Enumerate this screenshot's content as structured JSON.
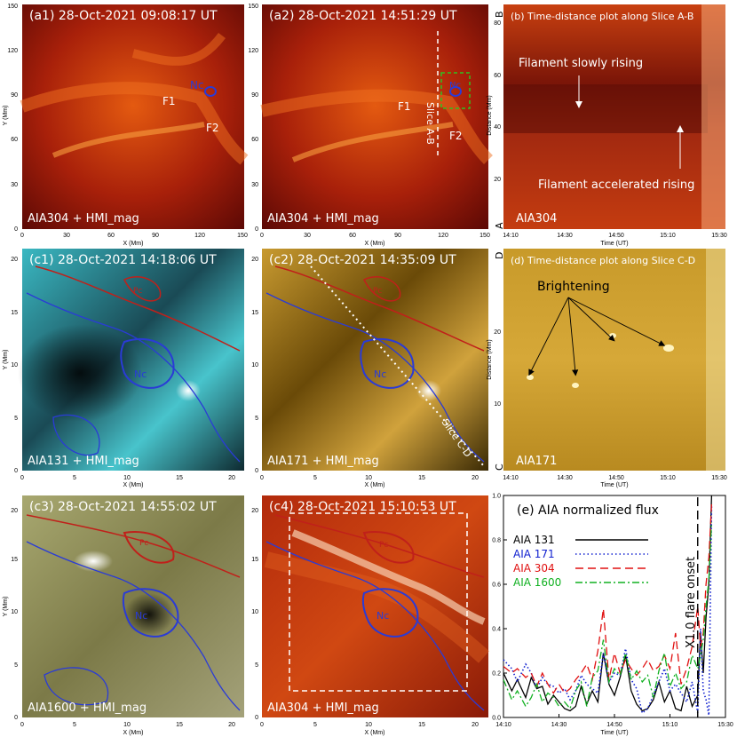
{
  "figure": {
    "panels": {
      "a1": {
        "title": "(a1) 28-Oct-2021 09:08:17 UT",
        "label": "AIA304 + HMI_mag",
        "xlabel": "X (Mm)",
        "ylabel": "Y (Mm)",
        "xticks": [
          "0",
          "30",
          "60",
          "90",
          "120",
          "150"
        ],
        "yticks": [
          "0",
          "30",
          "60",
          "90",
          "120",
          "150"
        ],
        "ann": {
          "f1": "F1",
          "f2": "F2",
          "nc": "Nc"
        }
      },
      "a2": {
        "title": "(a2) 28-Oct-2021 14:51:29 UT",
        "label": "AIA304 + HMI_mag",
        "xlabel": "X (Mm)",
        "xticks": [
          "0",
          "30",
          "60",
          "90",
          "120",
          "150"
        ],
        "yticks": [
          "0",
          "30",
          "60",
          "90",
          "120",
          "150"
        ],
        "ann": {
          "f1": "F1",
          "f2": "F2",
          "nc": "Nc",
          "slice": "Slice A-B"
        }
      },
      "b": {
        "title": "(b) Time-distance plot along Slice A-B",
        "label": "AIA304",
        "xlabel": "Time (UT)",
        "ylabel": "Distance (Mm)",
        "xticks": [
          "14:10",
          "14:30",
          "14:50",
          "15:10",
          "15:30"
        ],
        "yticks": [
          "20",
          "40",
          "60",
          "80"
        ],
        "ends": {
          "top": "B",
          "bottom": "A"
        },
        "ann": {
          "slow": "Filament slowly rising",
          "accel": "Filament accelerated rising"
        }
      },
      "c1": {
        "title": "(c1) 28-Oct-2021 14:18:06 UT",
        "label": "AIA131 + HMI_mag",
        "xlabel": "X (Mm)",
        "ylabel": "Y (Mm)",
        "xticks": [
          "0",
          "5",
          "10",
          "15",
          "20"
        ],
        "yticks": [
          "0",
          "5",
          "10",
          "15",
          "20"
        ],
        "ann": {
          "pc": "Pc",
          "nc": "Nc"
        }
      },
      "c2": {
        "title": "(c2) 28-Oct-2021 14:35:09 UT",
        "label": "AIA171 + HMI_mag",
        "xlabel": "X (Mm)",
        "xticks": [
          "0",
          "5",
          "10",
          "15",
          "20"
        ],
        "yticks": [
          "0",
          "5",
          "10",
          "15",
          "20"
        ],
        "ann": {
          "pc": "Pc",
          "nc": "Nc",
          "slice": "Slice C-D"
        }
      },
      "d": {
        "title": "(d) Time-distance plot along Slice C-D",
        "label": "AIA171",
        "xlabel": "Time (UT)",
        "ylabel": "Distance (Mm)",
        "xticks": [
          "14:10",
          "14:30",
          "14:50",
          "15:10",
          "15:30"
        ],
        "yticks": [
          "10",
          "20"
        ],
        "ends": {
          "top": "D",
          "bottom": "C"
        },
        "ann": {
          "bright": "Brightening"
        }
      },
      "c3": {
        "title": "(c3) 28-Oct-2021 14:55:02 UT",
        "label": "AIA1600 + HMI_mag",
        "xlabel": "X (Mm)",
        "ylabel": "Y (Mm)",
        "xticks": [
          "0",
          "5",
          "10",
          "15",
          "20"
        ],
        "yticks": [
          "0",
          "5",
          "10",
          "15",
          "20"
        ],
        "ann": {
          "pc": "Pc",
          "nc": "Nc"
        }
      },
      "c4": {
        "title": "(c4) 28-Oct-2021 15:10:53 UT",
        "label": "AIA304 + HMI_mag",
        "xlabel": "X (Mm)",
        "xticks": [
          "0",
          "5",
          "10",
          "15",
          "20"
        ],
        "yticks": [
          "0",
          "5",
          "10",
          "15",
          "20"
        ],
        "ann": {
          "pc": "Pc",
          "nc": "Nc"
        }
      },
      "e": {
        "title": "(e) AIA normalized flux",
        "xlabel": "Time (UT)",
        "xticks": [
          "14:10",
          "14:30",
          "14:50",
          "15:10",
          "15:30"
        ],
        "yticks": [
          "0.0",
          "0.2",
          "0.4",
          "0.6",
          "0.8",
          "1.0"
        ],
        "marker": "X1.0 flare onset"
      }
    },
    "colors": {
      "blue_contour": "#2a3bd6",
      "red_contour": "#c0201a",
      "aia304": "#c03008",
      "aia131": "#2aa7b2",
      "aia171": "#b98a1c",
      "aia1600": "#9a9a5a"
    }
  },
  "chart_data": {
    "type": "line",
    "title": "(e) AIA normalized flux",
    "xlabel": "Time (UT)",
    "ylabel": "",
    "xlim": [
      "14:10",
      "15:30"
    ],
    "ylim": [
      0.0,
      1.0
    ],
    "x_minutes_since_1410": [
      0,
      3,
      5,
      8,
      10,
      12,
      14,
      16,
      18,
      20,
      22,
      24,
      26,
      28,
      30,
      32,
      34,
      36,
      38,
      40,
      42,
      44,
      46,
      48,
      50,
      52,
      54,
      56,
      58,
      60,
      62,
      64,
      66,
      68,
      70,
      71,
      72,
      73,
      74,
      75
    ],
    "series": [
      {
        "name": "AIA 131",
        "color": "#000000",
        "dash": "solid",
        "values": [
          0.2,
          0.12,
          0.17,
          0.09,
          0.18,
          0.13,
          0.14,
          0.06,
          0.1,
          0.07,
          0.04,
          0.03,
          0.05,
          0.14,
          0.06,
          0.12,
          0.07,
          0.29,
          0.15,
          0.1,
          0.18,
          0.28,
          0.12,
          0.06,
          0.03,
          0.04,
          0.08,
          0.16,
          0.07,
          0.12,
          0.04,
          0.03,
          0.14,
          0.05,
          0.1,
          0.38,
          0.2,
          0.45,
          0.6,
          1.0
        ]
      },
      {
        "name": "AIA 171",
        "color": "#1020d0",
        "dash": "dotted",
        "values": [
          0.26,
          0.22,
          0.16,
          0.24,
          0.2,
          0.13,
          0.18,
          0.15,
          0.14,
          0.11,
          0.13,
          0.08,
          0.12,
          0.19,
          0.15,
          0.13,
          0.11,
          0.29,
          0.16,
          0.2,
          0.19,
          0.31,
          0.17,
          0.13,
          0.02,
          0.04,
          0.1,
          0.16,
          0.22,
          0.12,
          0.15,
          0.11,
          0.07,
          0.16,
          0.02,
          0.4,
          0.12,
          0.08,
          0.01,
          0.95
        ]
      },
      {
        "name": "AIA 304",
        "color": "#e01010",
        "dash": "dashed",
        "values": [
          0.23,
          0.2,
          0.22,
          0.18,
          0.2,
          0.14,
          0.2,
          0.15,
          0.11,
          0.15,
          0.11,
          0.13,
          0.17,
          0.2,
          0.24,
          0.17,
          0.3,
          0.49,
          0.17,
          0.29,
          0.2,
          0.26,
          0.22,
          0.19,
          0.22,
          0.26,
          0.21,
          0.23,
          0.28,
          0.22,
          0.38,
          0.15,
          0.22,
          0.32,
          0.5,
          0.32,
          0.38,
          0.6,
          0.72,
          0.96
        ]
      },
      {
        "name": "AIA 1600",
        "color": "#10b020",
        "dash": "dashdot",
        "values": [
          0.17,
          0.08,
          0.12,
          0.05,
          0.09,
          0.15,
          0.07,
          0.11,
          0.09,
          0.05,
          0.07,
          0.04,
          0.12,
          0.16,
          0.05,
          0.18,
          0.21,
          0.35,
          0.16,
          0.22,
          0.19,
          0.29,
          0.17,
          0.21,
          0.16,
          0.19,
          0.09,
          0.21,
          0.29,
          0.14,
          0.2,
          0.13,
          0.16,
          0.28,
          0.22,
          0.28,
          0.35,
          0.5,
          0.62,
          0.88
        ]
      }
    ],
    "legend": "top-left",
    "annotation": {
      "text": "X1.0 flare onset",
      "time": "15:20"
    }
  }
}
